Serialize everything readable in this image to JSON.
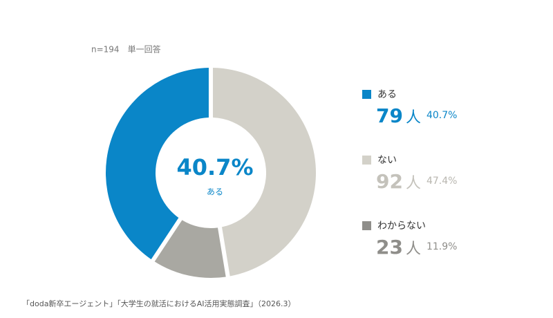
{
  "chart_data": {
    "type": "donut",
    "note": "n=194　単一回答",
    "categories": [
      "ある",
      "ない",
      "わからない"
    ],
    "values": [
      40.7,
      47.4,
      11.9
    ],
    "value_labels": [
      "40.7%",
      "47.4%",
      "11.9%"
    ],
    "counts": [
      79,
      92,
      23
    ],
    "count_unit": "人",
    "colors": [
      "#0a86c8",
      "#d3d1c9",
      "#a9a8a2"
    ],
    "source": "「doda新卒エージェント」「大学生の就活におけるAI活用実態調査」（2026.3）"
  }
}
